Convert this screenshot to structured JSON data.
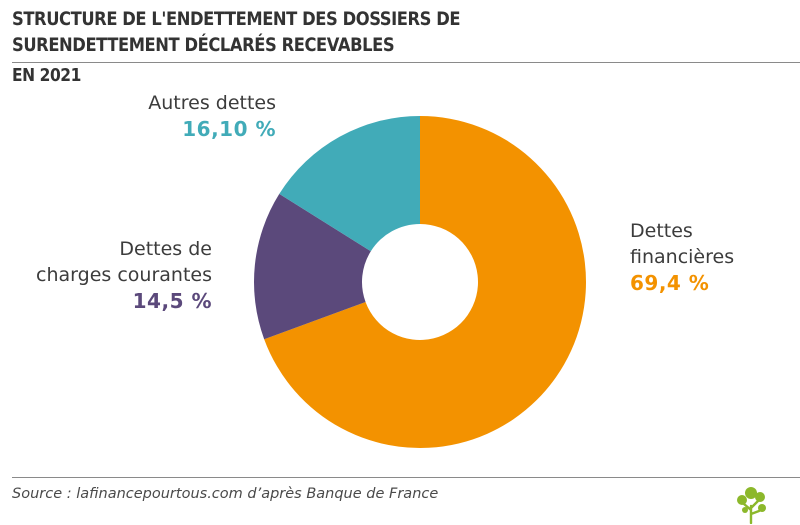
{
  "title_lines": [
    "STRUCTURE DE L'ENDETTEMENT DES DOSSIERS DE",
    "SURENDETTEMENT DÉCLARÉS RECEVABLES"
  ],
  "subtitle": "EN 2021",
  "source": "Source : lafinancepourtous.com d’après Banque de France",
  "chart_data": {
    "type": "pie",
    "title": "STRUCTURE DE L'ENDETTEMENT DES DOSSIERS DE SURENDETTEMENT DÉCLARÉS RECEVABLES",
    "subtitle": "EN 2021",
    "donut": true,
    "slices": [
      {
        "name_lines": [
          "Dettes",
          "financières"
        ],
        "value": 69.4,
        "value_label": "69,4 %",
        "color": "#f39200"
      },
      {
        "name_lines": [
          "Dettes de",
          "charges courantes"
        ],
        "value": 14.5,
        "value_label": "14,5 %",
        "color": "#5b497b"
      },
      {
        "name_lines": [
          "Autres dettes"
        ],
        "value": 16.1,
        "value_label": "16,10 %",
        "color": "#41abb8"
      }
    ]
  }
}
